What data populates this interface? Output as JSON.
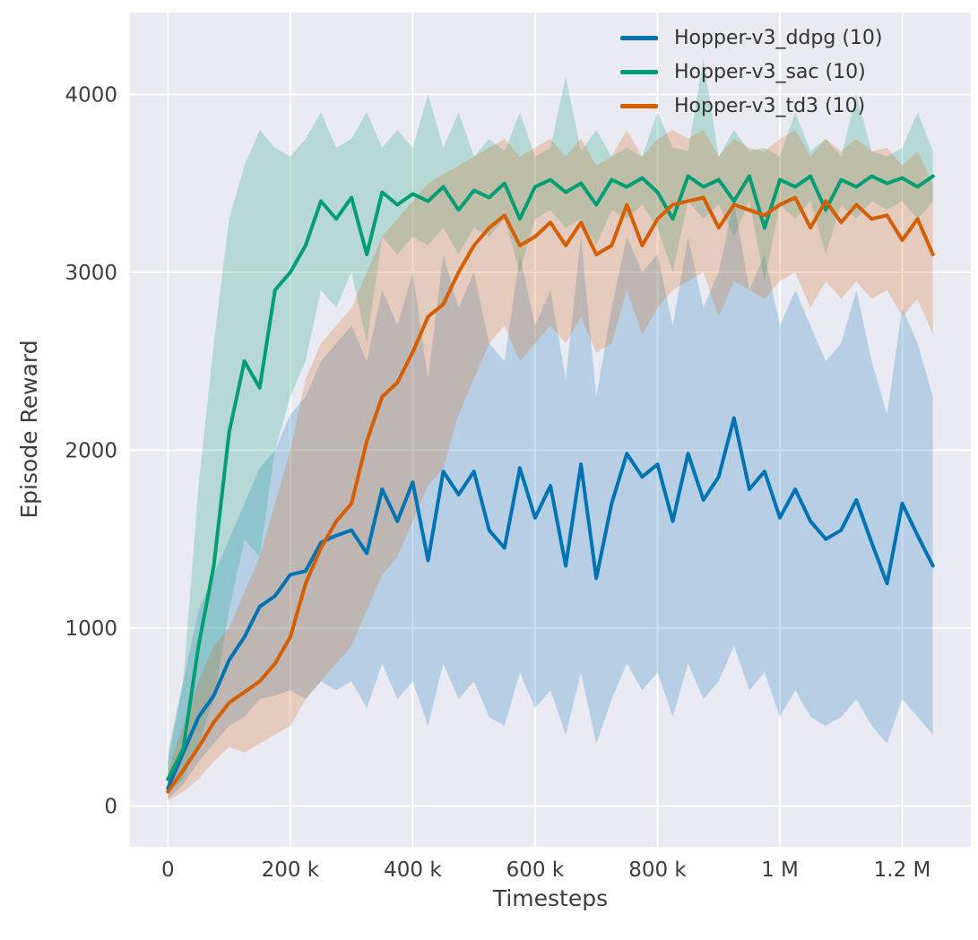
{
  "figure": {
    "background": "#ffffff",
    "plot_background": "#eaeaf2",
    "grid_color": "#ffffff",
    "text_color": "#3d3d3d"
  },
  "chart_data": {
    "type": "line",
    "title": "",
    "xlabel": "Timesteps",
    "ylabel": "Episode Reward",
    "x_unit": "thousands of timesteps",
    "xlim": [
      -62,
      1312
    ],
    "ylim": [
      -230,
      4460
    ],
    "grid": true,
    "legend_position": "upper right",
    "band_alpha": 0.22,
    "x_tick_values": [
      0,
      200,
      400,
      600,
      800,
      1000,
      1200
    ],
    "x_tick_labels": [
      "0",
      "200 k",
      "400 k",
      "600 k",
      "800 k",
      "1 M",
      "1.2 M"
    ],
    "y_tick_values": [
      0,
      1000,
      2000,
      3000,
      4000
    ],
    "y_tick_labels": [
      "0",
      "1000",
      "2000",
      "3000",
      "4000"
    ],
    "x": [
      0,
      25,
      50,
      75,
      100,
      125,
      150,
      175,
      200,
      225,
      250,
      275,
      300,
      325,
      350,
      375,
      400,
      425,
      450,
      475,
      500,
      525,
      550,
      575,
      600,
      625,
      650,
      675,
      700,
      725,
      750,
      775,
      800,
      825,
      850,
      875,
      900,
      925,
      950,
      975,
      1000,
      1025,
      1050,
      1075,
      1100,
      1125,
      1150,
      1175,
      1200,
      1225,
      1250
    ],
    "series": [
      {
        "name": "Hopper-v3_ddpg (10)",
        "color": "#0173b2",
        "mean": [
          100,
          300,
          500,
          620,
          820,
          950,
          1120,
          1180,
          1300,
          1320,
          1480,
          1520,
          1550,
          1420,
          1780,
          1600,
          1820,
          1380,
          1880,
          1750,
          1880,
          1550,
          1450,
          1900,
          1620,
          1800,
          1350,
          1920,
          1280,
          1700,
          1980,
          1850,
          1920,
          1600,
          1980,
          1720,
          1850,
          2180,
          1780,
          1880,
          1620,
          1780,
          1600,
          1500,
          1550,
          1720,
          1480,
          1250,
          1700,
          1520,
          1350
        ],
        "lo": [
          40,
          120,
          250,
          350,
          450,
          500,
          600,
          620,
          650,
          600,
          700,
          650,
          700,
          550,
          800,
          600,
          700,
          450,
          800,
          600,
          700,
          500,
          450,
          750,
          550,
          650,
          400,
          750,
          350,
          600,
          800,
          650,
          750,
          500,
          800,
          600,
          700,
          900,
          650,
          750,
          500,
          650,
          500,
          450,
          500,
          600,
          450,
          350,
          600,
          500,
          400
        ],
        "hi": [
          250,
          700,
          1100,
          1300,
          1500,
          1700,
          1900,
          2000,
          2200,
          2300,
          2500,
          2600,
          2700,
          2500,
          2900,
          2700,
          3000,
          2400,
          3100,
          2800,
          3000,
          2600,
          2500,
          3100,
          2700,
          2900,
          2400,
          3200,
          2300,
          2800,
          3200,
          3000,
          3100,
          2700,
          3200,
          2800,
          3000,
          3400,
          2900,
          3100,
          2700,
          2900,
          2700,
          2500,
          2600,
          2900,
          2500,
          2200,
          2800,
          2600,
          2300
        ]
      },
      {
        "name": "Hopper-v3_sac (10)",
        "color": "#029e73",
        "mean": [
          150,
          320,
          900,
          1350,
          2100,
          2500,
          2350,
          2900,
          3000,
          3150,
          3400,
          3300,
          3420,
          3100,
          3450,
          3380,
          3440,
          3400,
          3480,
          3350,
          3460,
          3420,
          3500,
          3300,
          3480,
          3520,
          3450,
          3500,
          3380,
          3520,
          3480,
          3530,
          3450,
          3300,
          3540,
          3480,
          3520,
          3400,
          3540,
          3250,
          3520,
          3480,
          3540,
          3350,
          3520,
          3480,
          3540,
          3500,
          3530,
          3480,
          3540
        ],
        "lo": [
          80,
          150,
          350,
          600,
          1100,
          1500,
          1400,
          2000,
          2300,
          2500,
          2900,
          2800,
          3000,
          2600,
          3200,
          3100,
          3200,
          3150,
          3250,
          3100,
          3250,
          3200,
          3300,
          3000,
          3300,
          3350,
          3250,
          3300,
          3150,
          3350,
          3300,
          3380,
          3250,
          3000,
          3400,
          3300,
          3380,
          3200,
          3400,
          2950,
          3380,
          3300,
          3400,
          3100,
          3380,
          3300,
          3400,
          3350,
          3400,
          3300,
          3400
        ],
        "hi": [
          300,
          700,
          1800,
          2600,
          3300,
          3600,
          3800,
          3700,
          3650,
          3750,
          3900,
          3700,
          3750,
          3900,
          3700,
          3800,
          3700,
          4000,
          3700,
          3900,
          3650,
          3750,
          3680,
          3900,
          3650,
          3700,
          4100,
          3680,
          3800,
          3650,
          3700,
          3650,
          3900,
          3700,
          3680,
          4200,
          3650,
          3800,
          3680,
          3700,
          3650,
          3900,
          3680,
          3750,
          3650,
          4000,
          3680,
          3650,
          3700,
          3900,
          3680
        ]
      },
      {
        "name": "Hopper-v3_td3 (10)",
        "color": "#d55e00",
        "mean": [
          80,
          200,
          330,
          470,
          580,
          640,
          700,
          800,
          950,
          1250,
          1450,
          1600,
          1700,
          2050,
          2300,
          2380,
          2550,
          2750,
          2820,
          3000,
          3150,
          3250,
          3320,
          3150,
          3200,
          3280,
          3150,
          3280,
          3100,
          3150,
          3380,
          3150,
          3300,
          3380,
          3400,
          3420,
          3250,
          3380,
          3350,
          3320,
          3380,
          3420,
          3250,
          3400,
          3280,
          3380,
          3300,
          3320,
          3180,
          3300,
          3100
        ],
        "lo": [
          30,
          80,
          150,
          250,
          330,
          300,
          350,
          400,
          450,
          600,
          700,
          800,
          900,
          1100,
          1300,
          1400,
          1600,
          1800,
          1900,
          2200,
          2400,
          2600,
          2700,
          2500,
          2600,
          2700,
          2600,
          2750,
          2550,
          2600,
          2900,
          2650,
          2800,
          2900,
          2950,
          3000,
          2750,
          2950,
          2900,
          2850,
          2950,
          3000,
          2800,
          2950,
          2850,
          2950,
          2850,
          2900,
          2750,
          2850,
          2650
        ],
        "hi": [
          200,
          450,
          700,
          900,
          1000,
          1200,
          1400,
          1700,
          2000,
          2400,
          2600,
          2700,
          2800,
          3000,
          3200,
          3300,
          3400,
          3500,
          3550,
          3600,
          3650,
          3700,
          3750,
          3650,
          3700,
          3750,
          3650,
          3750,
          3600,
          3650,
          3800,
          3650,
          3750,
          3800,
          3750,
          3800,
          3650,
          3750,
          3700,
          3680,
          3750,
          3800,
          3650,
          3750,
          3680,
          3750,
          3680,
          3700,
          3600,
          3680,
          3500
        ]
      }
    ]
  }
}
